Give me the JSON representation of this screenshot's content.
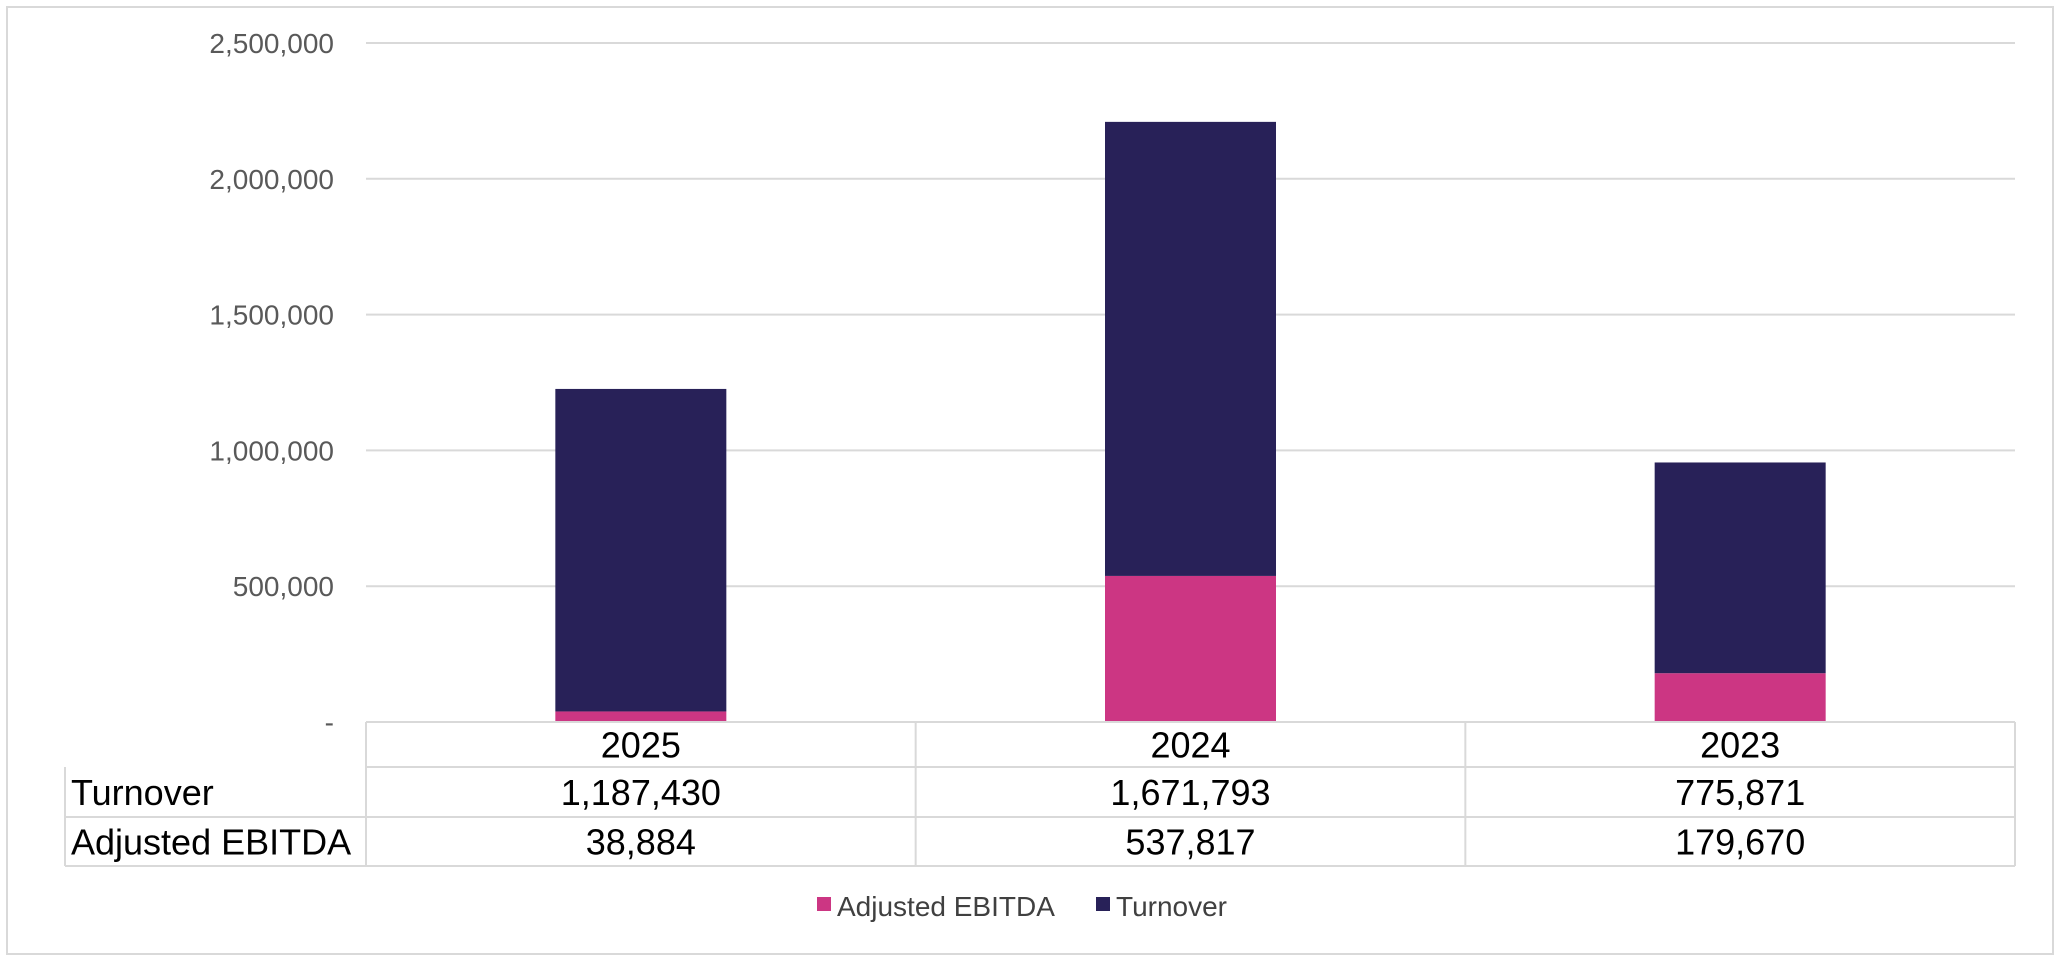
{
  "chart_data": {
    "type": "bar",
    "stacked": true,
    "categories": [
      "2025",
      "2024",
      "2023"
    ],
    "series": [
      {
        "name": "Adjusted EBITDA",
        "values": [
          38884,
          537817,
          179670
        ],
        "color": "#cc3683"
      },
      {
        "name": "Turnover",
        "values": [
          1187430,
          1671793,
          775871
        ],
        "color": "#282158"
      }
    ],
    "table_rows": [
      {
        "label": "Turnover",
        "values": [
          "1,187,430",
          "1,671,793",
          "775,871"
        ]
      },
      {
        "label": "Adjusted EBITDA",
        "values": [
          "38,884",
          "537,817",
          "179,670"
        ]
      }
    ],
    "yticks": [
      0,
      500000,
      1000000,
      1500000,
      2000000,
      2500000
    ],
    "ytick_labels": [
      "-",
      "500,000",
      "1,000,000",
      "1,500,000",
      "2,000,000",
      "2,500,000"
    ],
    "ylim": [
      0,
      2500000
    ],
    "grid": true,
    "legend": {
      "position": "bottom",
      "items": [
        "Adjusted EBITDA",
        "Turnover"
      ]
    },
    "title": "",
    "xlabel": "",
    "ylabel": ""
  }
}
